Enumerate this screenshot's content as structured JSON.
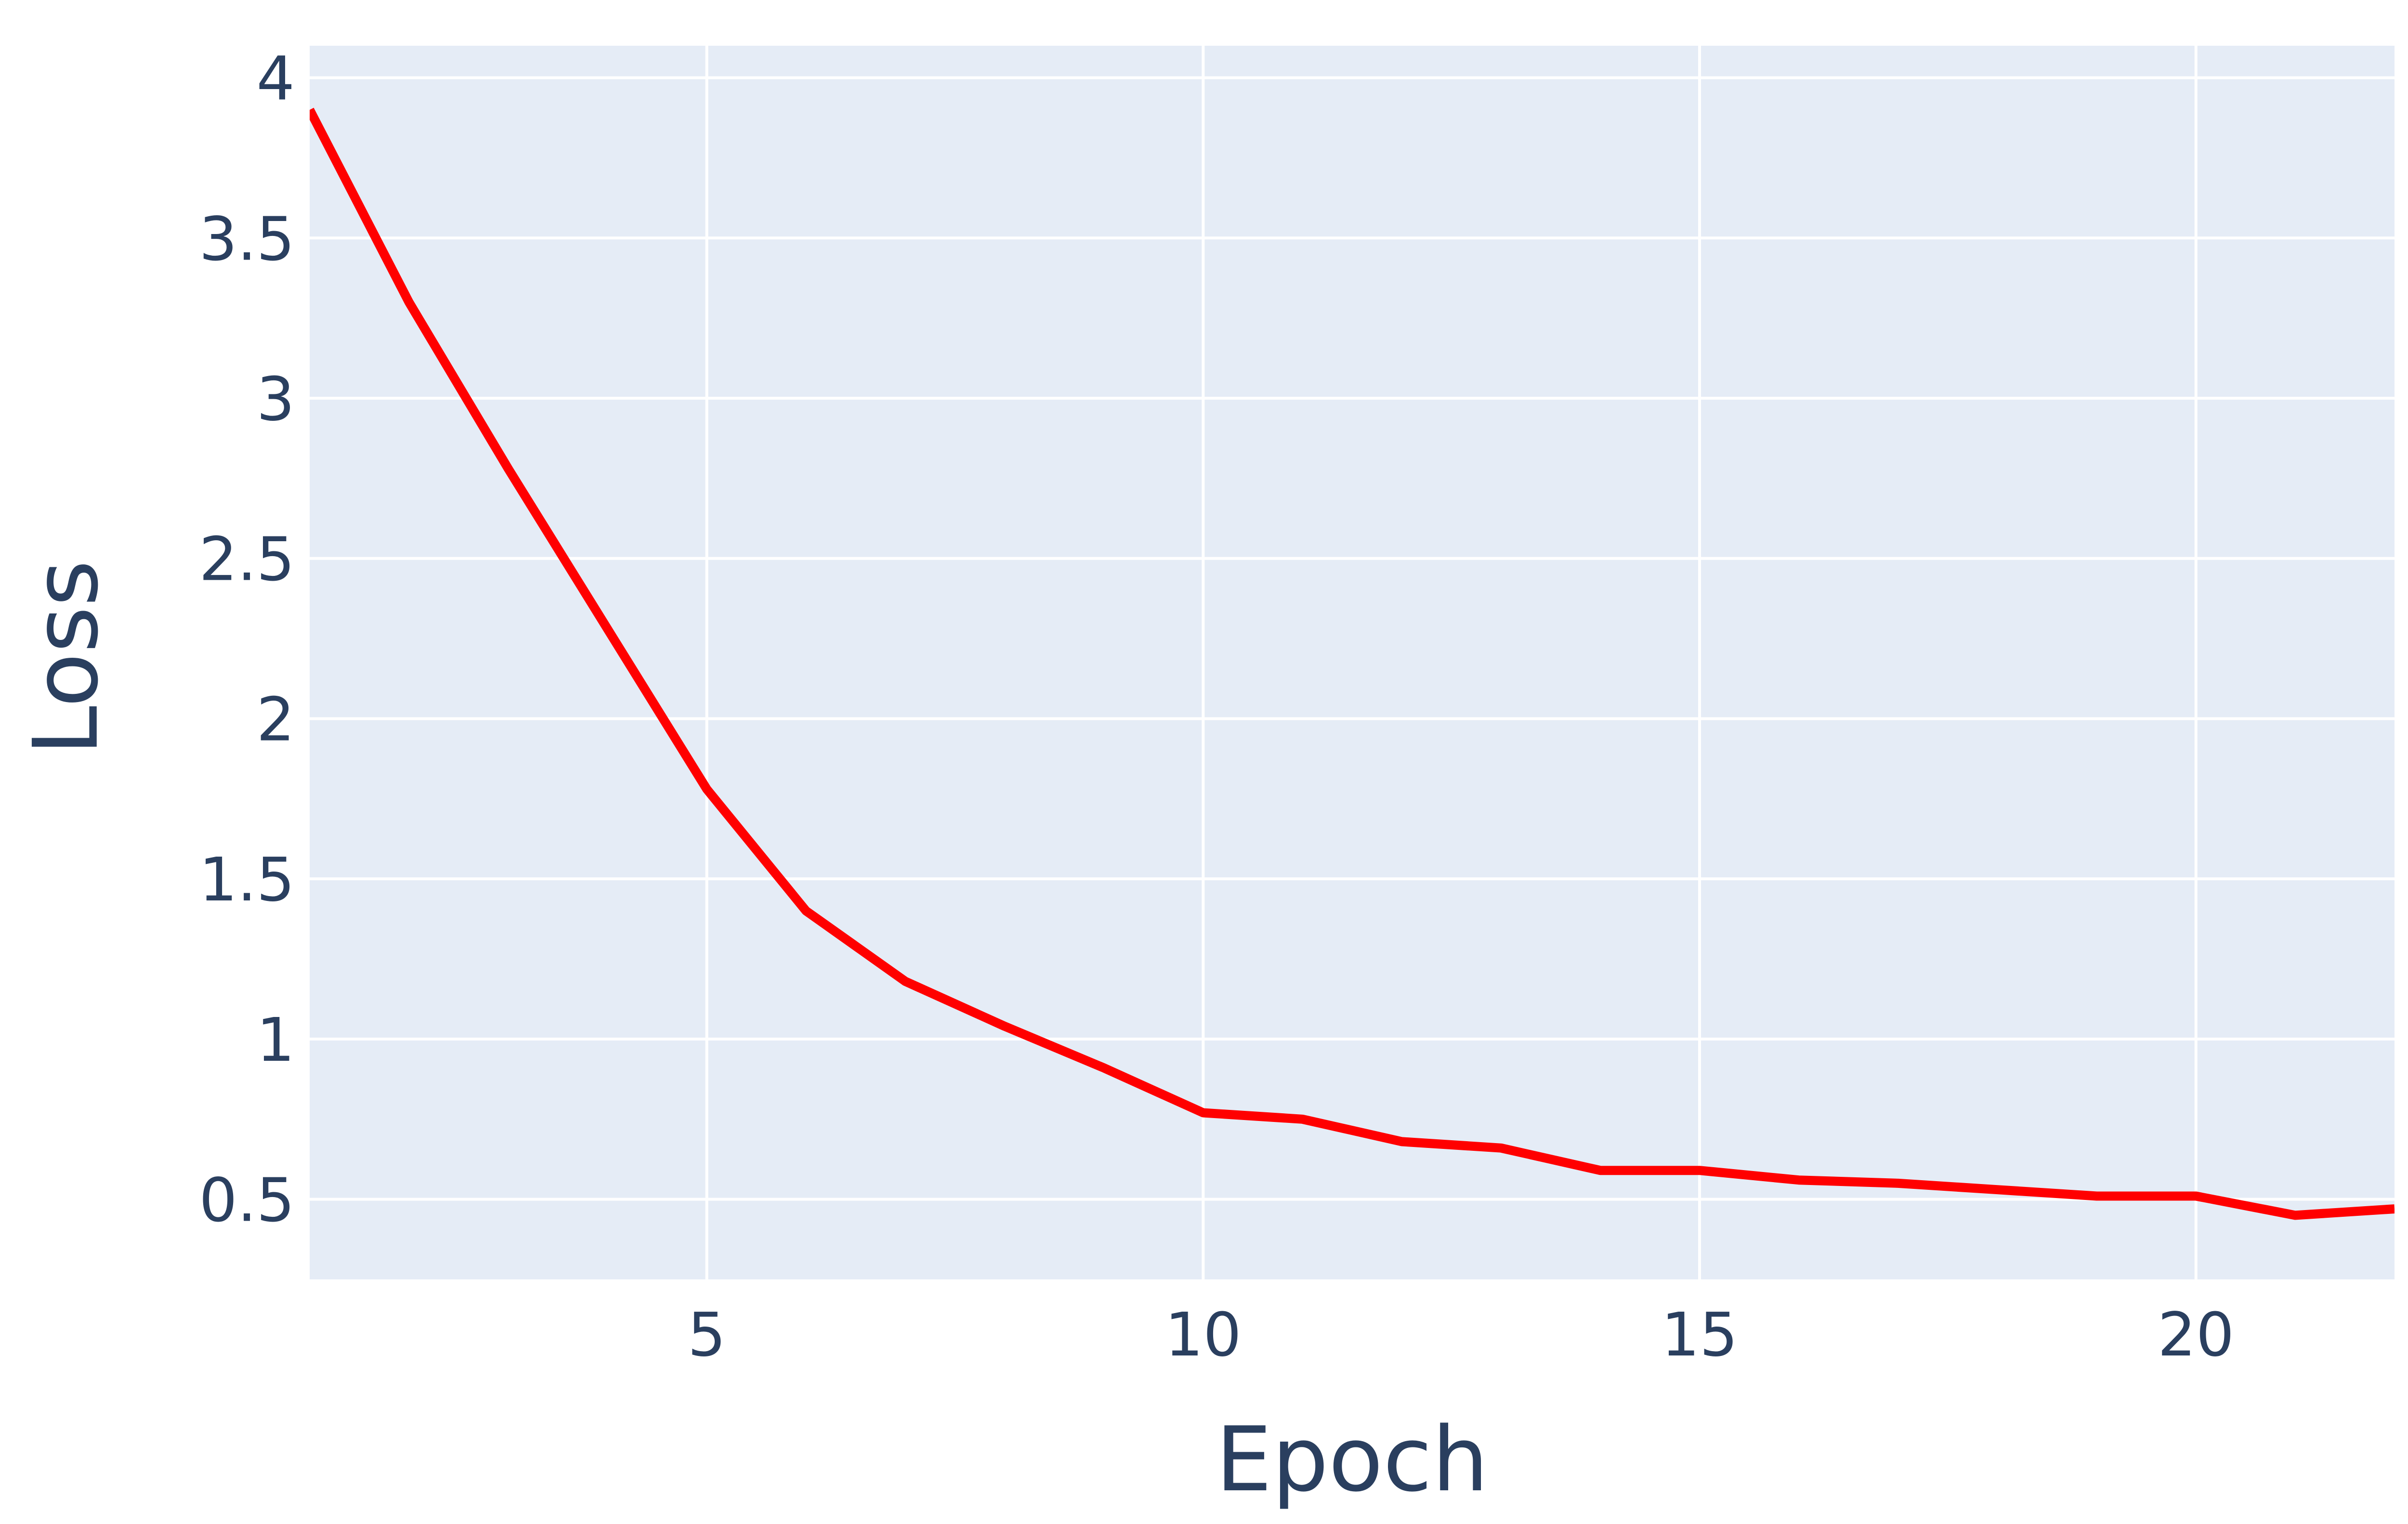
{
  "chart_data": {
    "type": "line",
    "title": "",
    "xlabel": "Epoch",
    "ylabel": "Loss",
    "xlim": [
      1,
      22
    ],
    "ylim": [
      0.25,
      4.1
    ],
    "x_ticks": [
      5,
      10,
      15,
      20
    ],
    "y_ticks": [
      0.5,
      1,
      1.5,
      2,
      2.5,
      3,
      3.5,
      4
    ],
    "x_tick_labels": [
      "5",
      "10",
      "15",
      "20"
    ],
    "y_tick_labels": [
      "0.5",
      "1",
      "1.5",
      "2",
      "2.5",
      "3",
      "3.5",
      "4"
    ],
    "grid": true,
    "legend": "none",
    "colors": {
      "plot_background": "#e5ecf6",
      "paper_background": "#ffffff",
      "grid": "#ffffff",
      "text": "#2a3f5f"
    },
    "series": [
      {
        "color": "#ff0000",
        "x": [
          1,
          2,
          3,
          4,
          5,
          6,
          7,
          8,
          9,
          10,
          11,
          12,
          13,
          14,
          15,
          16,
          17,
          18,
          19,
          20,
          21,
          22
        ],
        "y": [
          3.9,
          3.3,
          2.78,
          2.28,
          1.78,
          1.4,
          1.18,
          1.04,
          0.91,
          0.77,
          0.75,
          0.68,
          0.66,
          0.59,
          0.59,
          0.56,
          0.55,
          0.53,
          0.51,
          0.51,
          0.45,
          0.47
        ]
      }
    ]
  }
}
